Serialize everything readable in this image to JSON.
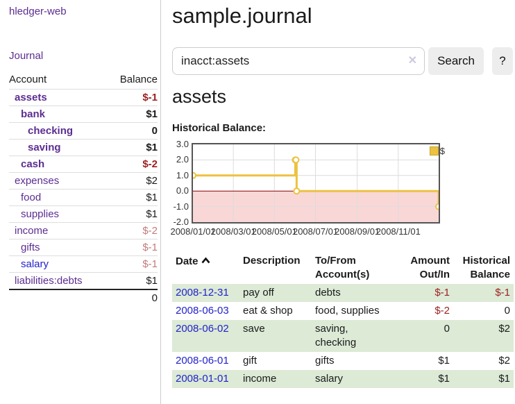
{
  "sidebar": {
    "brand": "hledger-web",
    "journal_link": "Journal",
    "accounts_table": {
      "headers": {
        "account": "Account",
        "balance": "Balance"
      },
      "rows": [
        {
          "name": "assets",
          "depth": 1,
          "bold": true,
          "balance": "$-1",
          "balance_style": "negative"
        },
        {
          "name": "bank",
          "depth": 2,
          "bold": true,
          "balance": "$1",
          "balance_style": "normal"
        },
        {
          "name": "checking",
          "depth": 3,
          "bold": true,
          "balance": "0",
          "balance_style": "normal"
        },
        {
          "name": "saving",
          "depth": 3,
          "bold": true,
          "balance": "$1",
          "balance_style": "normal"
        },
        {
          "name": "cash",
          "depth": 2,
          "bold": true,
          "balance": "$-2",
          "balance_style": "negative"
        },
        {
          "name": "expenses",
          "depth": 1,
          "bold": false,
          "balance": "$2",
          "balance_style": "normal"
        },
        {
          "name": "food",
          "depth": 2,
          "bold": false,
          "balance": "$1",
          "balance_style": "normal"
        },
        {
          "name": "supplies",
          "depth": 2,
          "bold": false,
          "balance": "$1",
          "balance_style": "normal"
        },
        {
          "name": "income",
          "depth": 1,
          "bold": false,
          "balance": "$-2",
          "balance_style": "negative-muted"
        },
        {
          "name": "gifts",
          "depth": 2,
          "bold": false,
          "balance": "$-1",
          "balance_style": "negative-muted"
        },
        {
          "name": "salary",
          "depth": 2,
          "bold": false,
          "balance": "$-1",
          "balance_style": "negative-muted"
        },
        {
          "name": "liabilities:debts",
          "depth": 1,
          "bold": false,
          "balance": "$1",
          "balance_style": "normal"
        }
      ],
      "total": "0"
    }
  },
  "main": {
    "title": "sample.journal",
    "search": {
      "value": "inacct:assets",
      "clear_icon": "✕",
      "button": "Search",
      "help_button": "?"
    },
    "account_heading": "assets"
  },
  "chart_data": {
    "type": "line",
    "step": true,
    "title": "Historical Balance:",
    "legend": "$",
    "legend_position": "top-right",
    "series": [
      {
        "name": "$",
        "color": "#edc240",
        "points": [
          {
            "date": "2008/01/01",
            "day": 0,
            "value": 1
          },
          {
            "date": "2008/06/01",
            "day": 152,
            "value": 2
          },
          {
            "date": "2008/06/02",
            "day": 153,
            "value": 2
          },
          {
            "date": "2008/06/03",
            "day": 154,
            "value": 0
          },
          {
            "date": "2008/12/31",
            "day": 365,
            "value": -1
          }
        ]
      }
    ],
    "x_ticks": [
      "2008/01/01",
      "2008/03/01",
      "2008/05/01",
      "2008/07/01",
      "2008/09/01",
      "2008/11/01"
    ],
    "x_tick_days": [
      0,
      60,
      121,
      182,
      244,
      305
    ],
    "x_range_days": [
      0,
      365
    ],
    "y_ticks": [
      "3.0",
      "2.0",
      "1.0",
      "0.0",
      "-1.0",
      "-2.0"
    ],
    "y_tick_values": [
      3,
      2,
      1,
      0,
      -1,
      -2
    ],
    "y_range": [
      -2,
      3
    ],
    "grid": true,
    "grid_color": "#dcdcdc",
    "zero_line_color": "#8b0000",
    "negative_region_color": "#f9d7d7",
    "marker": "open-circle"
  },
  "register_table": {
    "headers": {
      "date": "Date",
      "description": "Description",
      "tofrom_1": "To/From",
      "tofrom_2": "Account(s)",
      "amount_1": "Amount",
      "amount_2": "Out/In",
      "balance_1": "Historical",
      "balance_2": "Balance"
    },
    "rows": [
      {
        "date": "2008-12-31",
        "description": "pay off",
        "accounts": "debts",
        "amount": "$-1",
        "balance": "$-1"
      },
      {
        "date": "2008-06-03",
        "description": "eat & shop",
        "accounts": "food, supplies",
        "amount": "$-2",
        "balance": "0"
      },
      {
        "date": "2008-06-02",
        "description": "save",
        "accounts": "saving, checking",
        "amount": "0",
        "balance": "$2"
      },
      {
        "date": "2008-06-01",
        "description": "gift",
        "accounts": "gifts",
        "amount": "$1",
        "balance": "$2"
      },
      {
        "date": "2008-01-01",
        "description": "income",
        "accounts": "salary",
        "amount": "$1",
        "balance": "$1"
      }
    ]
  },
  "colors": {
    "link_purple": "#5c2d91",
    "link_blue": "#2222cc",
    "negative": "#9c1f1f",
    "negative_muted": "#c47a7a",
    "row_highlight": "#dcead6",
    "series_yellow": "#edc240"
  }
}
